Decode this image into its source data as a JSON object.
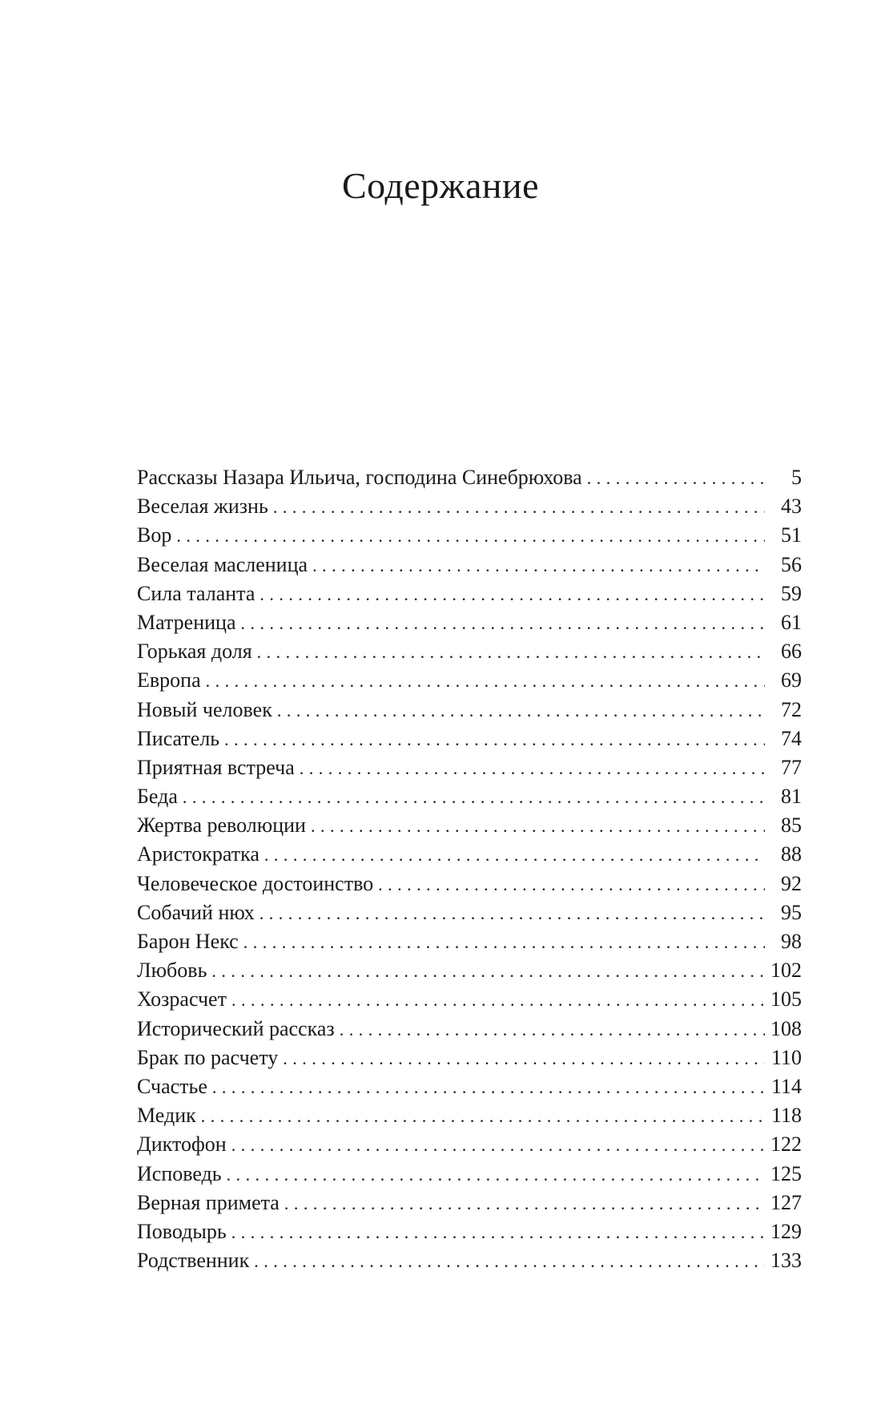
{
  "title": "Содержание",
  "entries": [
    {
      "title": "Рассказы Назара Ильича, господина Синебрюхова",
      "page": "5"
    },
    {
      "title": "Веселая жизнь",
      "page": "43"
    },
    {
      "title": "Вор",
      "page": "51"
    },
    {
      "title": "Веселая масленица",
      "page": "56"
    },
    {
      "title": "Сила таланта",
      "page": "59"
    },
    {
      "title": "Матреница",
      "page": "61"
    },
    {
      "title": "Горькая доля",
      "page": "66"
    },
    {
      "title": "Европа",
      "page": "69"
    },
    {
      "title": "Новый человек",
      "page": "72"
    },
    {
      "title": "Писатель",
      "page": "74"
    },
    {
      "title": "Приятная встреча",
      "page": "77"
    },
    {
      "title": "Беда",
      "page": "81"
    },
    {
      "title": "Жертва революции",
      "page": "85"
    },
    {
      "title": "Аристократка",
      "page": "88"
    },
    {
      "title": "Человеческое достоинство",
      "page": "92"
    },
    {
      "title": "Собачий нюх",
      "page": "95"
    },
    {
      "title": "Барон Некс",
      "page": "98"
    },
    {
      "title": "Любовь",
      "page": "102"
    },
    {
      "title": "Хозрасчет",
      "page": "105"
    },
    {
      "title": "Исторический рассказ",
      "page": "108"
    },
    {
      "title": "Брак по расчету",
      "page": "110"
    },
    {
      "title": "Счастье",
      "page": "114"
    },
    {
      "title": "Медик",
      "page": "118"
    },
    {
      "title": "Диктофон",
      "page": "122"
    },
    {
      "title": "Исповедь",
      "page": "125"
    },
    {
      "title": "Верная примета",
      "page": "127"
    },
    {
      "title": "Поводырь",
      "page": "129"
    },
    {
      "title": "Родственник",
      "page": "133"
    }
  ]
}
